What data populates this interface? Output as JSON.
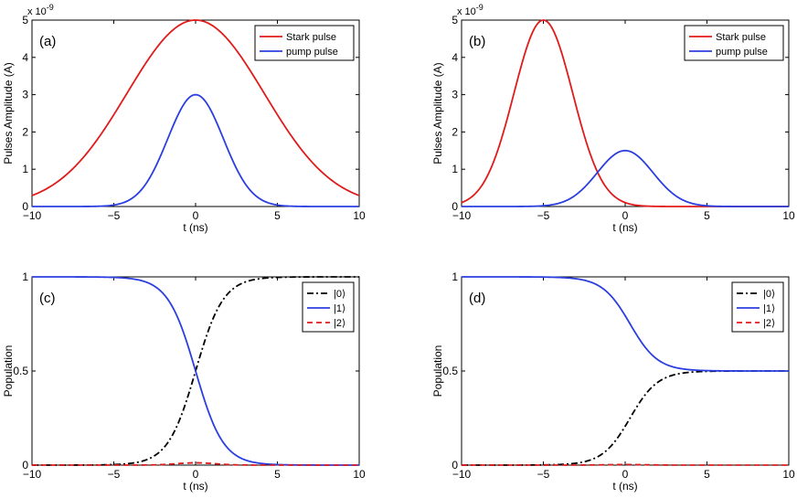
{
  "chart_data": [
    {
      "panel": "(a)",
      "type": "line",
      "title": "",
      "xlabel": "t (ns)",
      "ylabel": "Pulses Amplitude (A)",
      "y_exponent": "x 10",
      "y_exponent_power": "-9",
      "xlim": [
        -10,
        10
      ],
      "ylim": [
        0,
        5
      ],
      "xticks": [
        -10,
        -5,
        0,
        5,
        10
      ],
      "yticks": [
        0,
        1,
        2,
        3,
        4,
        5
      ],
      "xtick_labels": [
        "−10",
        "−5",
        "0",
        "5",
        "10"
      ],
      "ytick_labels": [
        "0",
        "1",
        "2",
        "3",
        "4",
        "5"
      ],
      "legend_position": "top-right",
      "series": [
        {
          "name": "Stark pulse",
          "color": "#e01b1b",
          "dash": "solid",
          "shape": "gaussian",
          "amplitude": 5,
          "center": 0,
          "sigma": 4.2
        },
        {
          "name": "pump pulse",
          "color": "#2b3fe0",
          "dash": "solid",
          "shape": "gaussian",
          "amplitude": 3,
          "center": 0,
          "sigma": 1.7
        }
      ]
    },
    {
      "panel": "(b)",
      "type": "line",
      "title": "",
      "xlabel": "t (ns)",
      "ylabel": "Pulses Amplitude (A)",
      "y_exponent": "x 10",
      "y_exponent_power": "-9",
      "xlim": [
        -10,
        10
      ],
      "ylim": [
        0,
        5
      ],
      "xticks": [
        -10,
        -5,
        0,
        5,
        10
      ],
      "yticks": [
        0,
        1,
        2,
        3,
        4,
        5
      ],
      "xtick_labels": [
        "−10",
        "−5",
        "0",
        "5",
        "10"
      ],
      "ytick_labels": [
        "0",
        "1",
        "2",
        "3",
        "4",
        "5"
      ],
      "legend_position": "top-right",
      "series": [
        {
          "name": "Stark pulse",
          "color": "#e01b1b",
          "dash": "solid",
          "shape": "gaussian",
          "amplitude": 5,
          "center": -5,
          "sigma": 1.8
        },
        {
          "name": "pump pulse",
          "color": "#2b3fe0",
          "dash": "solid",
          "shape": "gaussian",
          "amplitude": 1.5,
          "center": 0,
          "sigma": 1.7
        }
      ]
    },
    {
      "panel": "(c)",
      "type": "line",
      "title": "",
      "xlabel": "t (ns)",
      "ylabel": "Population",
      "xlim": [
        -10,
        10
      ],
      "ylim": [
        0,
        1
      ],
      "xticks": [
        -10,
        -5,
        0,
        5,
        10
      ],
      "yticks": [
        0,
        0.5,
        1
      ],
      "xtick_labels": [
        "−10",
        "−5",
        "0",
        "5",
        "10"
      ],
      "ytick_labels": [
        "0",
        "0.5",
        "1"
      ],
      "legend_position": "top-right",
      "series": [
        {
          "name": "|0⟩",
          "color": "#000000",
          "dash": "dashdot",
          "shape": "logistic",
          "from": 0,
          "to": 1,
          "center": 0,
          "scale": 0.85
        },
        {
          "name": "|1⟩",
          "color": "#2b3fe0",
          "dash": "solid",
          "shape": "logistic",
          "from": 1,
          "to": 0,
          "center": 0,
          "scale": 0.85
        },
        {
          "name": "|2⟩",
          "color": "#e01b1b",
          "dash": "dashed",
          "shape": "bump",
          "base": 0,
          "amplitude": 0.012,
          "center": 0,
          "sigma": 1.2
        }
      ]
    },
    {
      "panel": "(d)",
      "type": "line",
      "title": "",
      "xlabel": "t (ns)",
      "ylabel": "Population",
      "xlim": [
        -10,
        10
      ],
      "ylim": [
        0,
        1
      ],
      "xticks": [
        -10,
        -5,
        0,
        5,
        10
      ],
      "yticks": [
        0,
        0.5,
        1
      ],
      "xtick_labels": [
        "−10",
        "−5",
        "0",
        "5",
        "10"
      ],
      "ytick_labels": [
        "0",
        "0.5",
        "1"
      ],
      "legend_position": "top-right",
      "series": [
        {
          "name": "|0⟩",
          "color": "#000000",
          "dash": "dashdot",
          "shape": "logistic",
          "from": 0,
          "to": 0.5,
          "center": 0.3,
          "scale": 0.85
        },
        {
          "name": "|1⟩",
          "color": "#2b3fe0",
          "dash": "solid",
          "shape": "logistic",
          "from": 1,
          "to": 0.5,
          "center": 0.3,
          "scale": 0.85
        },
        {
          "name": "|2⟩",
          "color": "#e01b1b",
          "dash": "dashed",
          "shape": "bump",
          "base": 0,
          "amplitude": 0.003,
          "center": 0,
          "sigma": 1.2
        }
      ]
    }
  ]
}
